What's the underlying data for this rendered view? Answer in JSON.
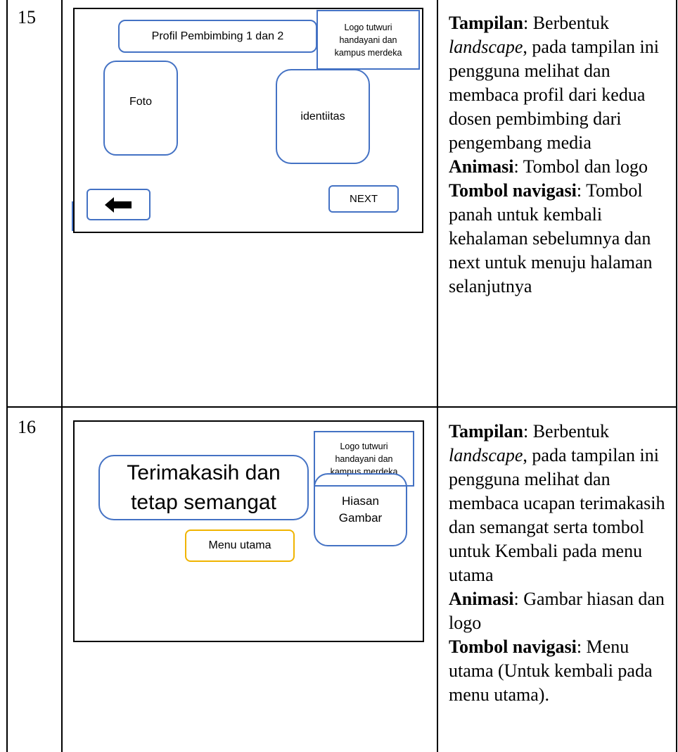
{
  "table": {
    "rows": [
      {
        "number": "15",
        "wireframe": {
          "title": "Profil Pembimbing 1 dan 2",
          "logo": [
            "Logo tutwuri",
            "handayani dan",
            "kampus merdeka"
          ],
          "photo": "Foto",
          "identity": "identiitas",
          "next": "NEXT"
        },
        "description": {
          "tampilan": {
            "label": "Tampilan",
            "before": ": Berbentuk",
            "italic": "landscape",
            "after": ", pada tampilan ini pengguna melihat dan membaca profil dari kedua dosen pembimbing dari pengembang media"
          },
          "animasi": {
            "label": "Animasi",
            "text": ": Tombol dan logo"
          },
          "tombol": {
            "label": "Tombol navigasi",
            "text": ": Tombol panah untuk kembali kehalaman sebelumnya dan next untuk menuju halaman selanjutnya"
          }
        }
      },
      {
        "number": "16",
        "wireframe": {
          "logo": [
            "Logo tutwuri",
            "handayani dan",
            "kampus merdeka"
          ],
          "message": [
            "Terimakasih dan",
            "tetap semangat"
          ],
          "decoration": [
            "Hiasan",
            "Gambar"
          ],
          "menu": "Menu utama"
        },
        "description": {
          "tampilan": {
            "label": "Tampilan",
            "before": ": Berbentuk",
            "italic": "landscape",
            "after": ", pada tampilan ini pengguna melihat dan membaca ucapan terimakasih dan semangat serta tombol untuk Kembali pada menu utama"
          },
          "animasi": {
            "label": "Animasi",
            "text": ": Gambar hiasan dan logo"
          },
          "tombol": {
            "label": "Tombol navigasi",
            "text": ": Menu utama (Untuk kembali pada menu utama)."
          }
        }
      }
    ]
  }
}
